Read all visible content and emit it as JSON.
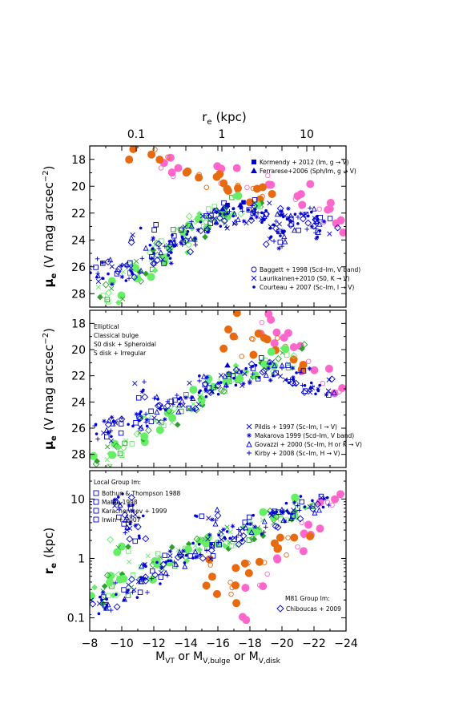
{
  "chart_data": [
    {
      "type": "scatter",
      "panel": "top",
      "ylabel_prefix": "μ",
      "ylabel_sub": "e",
      "ylabel_rest": "(V mag arcsec",
      "ylabel_sup": "−2",
      "ylabel_close": ")",
      "ylim": [
        29,
        17
      ],
      "xlim": [
        -8,
        -24
      ],
      "top_axis_label_prefix": "r",
      "top_axis_label_sub": "e",
      "top_axis_label_rest": "(kpc)",
      "top_ticks": [
        "0.1",
        "1",
        "10"
      ],
      "yticks": [
        "18",
        "20",
        "22",
        "24",
        "26",
        "28"
      ],
      "legend_top": [
        {
          "marker": "filled-square",
          "color": "#0000cc",
          "label": "Kormendy + 2012 (Im, g → V)"
        },
        {
          "marker": "filled-triangle",
          "color": "#0000cc",
          "label": "Ferrarese+2006 (Sph/Im, g → V)"
        }
      ],
      "legend_bottom": [
        {
          "marker": "open-circle",
          "color": "#0000cc",
          "label": "Baggett + 1998 (Scd–Im, V band)"
        },
        {
          "marker": "x",
          "color": "#0000cc",
          "label": "Laurikainen+2010 (S0, K → V)"
        },
        {
          "marker": "dot",
          "color": "#0000cc",
          "label": "Courteau + 2007 (Sc–Im, I → V)"
        }
      ],
      "series": [
        {
          "group": "Elliptical",
          "color": "#ff66cc",
          "points": [
            [
              -13.2,
              18.2
            ],
            [
              -13.8,
              18.6
            ],
            [
              -15.5,
              19.0
            ],
            [
              -17.0,
              19.4
            ],
            [
              -18.5,
              19.6
            ],
            [
              -19.5,
              19.9
            ],
            [
              -20.5,
              20.1
            ],
            [
              -21.2,
              20.6
            ],
            [
              -21.8,
              21.0
            ],
            [
              -22.3,
              21.5
            ],
            [
              -22.8,
              22.0
            ],
            [
              -23.2,
              22.6
            ],
            [
              -23.5,
              22.9
            ],
            [
              -12.8,
              18.5
            ]
          ]
        },
        {
          "group": "Classical bulge",
          "color": "#e86a10",
          "points": [
            [
              -10.3,
              17.9
            ],
            [
              -12.0,
              17.6
            ],
            [
              -12.8,
              18.5
            ],
            [
              -14.2,
              18.8
            ],
            [
              -14.8,
              19.3
            ],
            [
              -15.5,
              19.8
            ],
            [
              -16.3,
              19.9
            ],
            [
              -17.0,
              20.3
            ],
            [
              -17.8,
              20.5
            ],
            [
              -18.6,
              20.9
            ],
            [
              -19.3,
              21.1
            ],
            [
              -16.8,
              20.0
            ],
            [
              -18.0,
              20.2
            ]
          ]
        },
        {
          "group": "S0 disk + Spheroidal",
          "color": "#2ca02c",
          "points": [
            [
              -9.0,
              27.5
            ],
            [
              -9.8,
              28.0
            ],
            [
              -10.6,
              26.8
            ],
            [
              -11.2,
              26.2
            ],
            [
              -12.0,
              25.5
            ],
            [
              -12.6,
              24.8
            ],
            [
              -13.4,
              24.5
            ],
            [
              -14.0,
              23.8
            ],
            [
              -14.5,
              23.0
            ],
            [
              -15.0,
              22.6
            ],
            [
              -15.8,
              22.4
            ],
            [
              -16.4,
              21.8
            ],
            [
              -17.2,
              21.5
            ],
            [
              -18.0,
              21.5
            ]
          ]
        },
        {
          "group": "S disk + Irregular",
          "color": "#0000cc",
          "points": [
            [
              -8.5,
              26.0
            ],
            [
              -9.2,
              26.4
            ],
            [
              -10.0,
              26.6
            ],
            [
              -10.8,
              26.0
            ],
            [
              -11.4,
              23.6
            ],
            [
              -12.0,
              25.2
            ],
            [
              -12.6,
              25.0
            ],
            [
              -13.2,
              24.8
            ],
            [
              -13.8,
              24.2
            ],
            [
              -14.4,
              23.6
            ],
            [
              -15.0,
              22.8
            ],
            [
              -15.6,
              22.6
            ],
            [
              -16.2,
              22.4
            ],
            [
              -16.8,
              22.0
            ],
            [
              -17.4,
              22.2
            ],
            [
              -18.0,
              22.0
            ],
            [
              -18.6,
              21.8
            ],
            [
              -19.2,
              22.2
            ],
            [
              -19.8,
              22.4
            ],
            [
              -20.4,
              22.6
            ],
            [
              -21.0,
              22.8
            ],
            [
              -21.6,
              22.4
            ],
            [
              -22.2,
              22.8
            ],
            [
              -22.8,
              23.2
            ],
            [
              -20.0,
              23.6
            ],
            [
              -19.5,
              24.0
            ]
          ]
        },
        {
          "group": "Ferrarese+2006",
          "color": "#0000cc",
          "points": [
            [
              -16.3,
              21.7
            ],
            [
              -17.4,
              21.4
            ]
          ]
        },
        {
          "group": "Kormendy+2012",
          "color": "#0000cc",
          "points": [
            [
              -16.6,
              21.4
            ],
            [
              -17.6,
              21.2
            ]
          ]
        }
      ]
    },
    {
      "type": "scatter",
      "panel": "middle",
      "ylabel_prefix": "μ",
      "ylabel_sub": "e",
      "ylabel_rest": "(V mag arcsec",
      "ylabel_sup": "−2",
      "ylabel_close": ")",
      "ylim": [
        29,
        17
      ],
      "xlim": [
        -8,
        -24
      ],
      "yticks": [
        "18",
        "20",
        "22",
        "24",
        "26",
        "28"
      ],
      "group_legend": [
        {
          "label": "Elliptical",
          "color": "#ff66cc"
        },
        {
          "label": "Classical bulge",
          "color": "#e86a10"
        },
        {
          "label": "S0 disk + Spheroidal",
          "color": "#2ca02c"
        },
        {
          "label": "S disk + Irregular",
          "color": "#0000cc"
        }
      ],
      "legend_bottom": [
        {
          "marker": "x",
          "color": "#0000cc",
          "label": "Pildis + 1997 (Sc–Im, I → V)"
        },
        {
          "marker": "asterisk",
          "color": "#0000cc",
          "label": "Makarova 1999 (Scd–Im, V band)"
        },
        {
          "marker": "open-triangle",
          "color": "#0000cc",
          "label": "Govazzi + 2000 (Sc–Im, H or K → V)"
        },
        {
          "marker": "plus",
          "color": "#0000cc",
          "label": "Kirby + 2008 (Sc–Im, H → V)"
        }
      ],
      "series": [
        {
          "group": "Elliptical",
          "color": "#ff66cc",
          "points": [
            [
              -18.6,
              18.0
            ],
            [
              -19.4,
              18.4
            ],
            [
              -20.0,
              18.9
            ],
            [
              -20.6,
              19.4
            ],
            [
              -21.2,
              20.2
            ],
            [
              -21.8,
              21.0
            ],
            [
              -22.4,
              21.8
            ],
            [
              -23.0,
              22.4
            ],
            [
              -23.6,
              22.8
            ],
            [
              -19.0,
              19.2
            ]
          ]
        },
        {
          "group": "Classical bulge",
          "color": "#e86a10",
          "points": [
            [
              -17.0,
              17.8
            ],
            [
              -17.6,
              19.0
            ],
            [
              -18.2,
              18.9
            ],
            [
              -18.8,
              19.6
            ],
            [
              -19.4,
              19.9
            ],
            [
              -20.0,
              20.3
            ],
            [
              -20.8,
              20.8
            ],
            [
              -18.0,
              20.4
            ],
            [
              -16.8,
              19.3
            ]
          ]
        },
        {
          "group": "S0 disk + Spheroidal",
          "color": "#2ca02c",
          "points": [
            [
              -8.6,
              28.2
            ],
            [
              -9.4,
              27.6
            ],
            [
              -10.2,
              27.4
            ],
            [
              -11.0,
              26.4
            ],
            [
              -12.0,
              25.6
            ],
            [
              -12.8,
              25.0
            ],
            [
              -13.6,
              24.6
            ],
            [
              -14.4,
              24.0
            ],
            [
              -15.2,
              23.4
            ],
            [
              -16.0,
              23.0
            ],
            [
              -16.8,
              22.4
            ],
            [
              -17.6,
              21.8
            ],
            [
              -18.4,
              21.4
            ],
            [
              -19.2,
              21.2
            ],
            [
              -20.0,
              20.6
            ],
            [
              -20.8,
              20.4
            ]
          ]
        },
        {
          "group": "S disk + Irregular",
          "color": "#0000cc",
          "points": [
            [
              -8.4,
              26.4
            ],
            [
              -9.2,
              26.2
            ],
            [
              -10.0,
              25.8
            ],
            [
              -10.8,
              25.4
            ],
            [
              -11.6,
              25.2
            ],
            [
              -12.4,
              24.6
            ],
            [
              -13.2,
              24.2
            ],
            [
              -14.0,
              23.8
            ],
            [
              -14.8,
              23.2
            ],
            [
              -15.6,
              22.8
            ],
            [
              -16.4,
              22.4
            ],
            [
              -17.2,
              22.0
            ],
            [
              -18.0,
              21.8
            ],
            [
              -18.8,
              21.4
            ],
            [
              -19.6,
              21.6
            ],
            [
              -20.4,
              22.0
            ],
            [
              -21.2,
              22.2
            ],
            [
              -22.0,
              22.6
            ],
            [
              -22.6,
              23.0
            ],
            [
              -11.6,
              23.2
            ]
          ]
        },
        {
          "group": "Ferrarese+2006",
          "color": "#0000cc",
          "points": [
            [
              -16.6,
              21.2
            ]
          ]
        }
      ]
    },
    {
      "type": "scatter",
      "panel": "bottom",
      "ylabel_prefix": "r",
      "ylabel_sub": "e",
      "ylabel_rest": "(kpc)",
      "ylim": [
        0.06,
        30
      ],
      "y_scale": "log",
      "xlim": [
        -8,
        -24
      ],
      "yticks": [
        "0.1",
        "1",
        "10"
      ],
      "xlabel_main": "M",
      "xlabel_parts": [
        {
          "text": "M",
          "sub": "VT"
        },
        {
          "text": " or M",
          "sub": "V,bulge"
        },
        {
          "text": " or M",
          "sub": "V,disk"
        }
      ],
      "xticks": [
        "−8",
        "−10",
        "−12",
        "−14",
        "−16",
        "−18",
        "−20",
        "−22",
        "−24"
      ],
      "legend_top_title": "Local Group Im:",
      "legend_top": [
        {
          "marker": "open-square",
          "color": "#0000cc",
          "label": "Bothun & Thompson 1988"
        },
        {
          "marker": "open-square",
          "color": "#0000cc",
          "label": "Mateo 1998"
        },
        {
          "marker": "open-square",
          "color": "#0000cc",
          "label": "Karachentsev + 1999"
        },
        {
          "marker": "open-square",
          "color": "#0000cc",
          "label": "Irwin + 2007"
        }
      ],
      "legend_bottom_title": "M81 Group Im:",
      "legend_bottom": [
        {
          "marker": "open-diamond",
          "color": "#0000cc",
          "label": "Chiboucas + 2009"
        }
      ],
      "series": [
        {
          "group": "Elliptical",
          "color": "#ff66cc",
          "points": [
            [
              -17.0,
              0.12
            ],
            [
              -18.2,
              0.25
            ],
            [
              -19.0,
              0.4
            ],
            [
              -19.8,
              0.8
            ],
            [
              -20.6,
              1.4
            ],
            [
              -21.2,
              2.2
            ],
            [
              -21.8,
              3.5
            ],
            [
              -22.4,
              6.0
            ],
            [
              -23.0,
              10.0
            ],
            [
              -23.6,
              18.0
            ],
            [
              -22.0,
              5.0
            ]
          ]
        },
        {
          "group": "Classical bulge",
          "color": "#e86a10",
          "points": [
            [
              -15.6,
              0.3
            ],
            [
              -16.2,
              0.45
            ],
            [
              -16.8,
              0.35
            ],
            [
              -17.4,
              0.6
            ],
            [
              -18.0,
              0.8
            ],
            [
              -18.6,
              0.9
            ],
            [
              -19.2,
              1.0
            ],
            [
              -19.8,
              1.3
            ],
            [
              -20.4,
              1.6
            ],
            [
              -21.0,
              2.0
            ],
            [
              -15.8,
              0.7
            ],
            [
              -17.0,
              0.25
            ]
          ]
        },
        {
          "group": "S0 disk + Spheroidal",
          "color": "#2ca02c",
          "points": [
            [
              -8.4,
              0.2
            ],
            [
              -9.0,
              0.3
            ],
            [
              -9.6,
              0.35
            ],
            [
              -10.4,
              0.45
            ],
            [
              -11.2,
              0.6
            ],
            [
              -12.0,
              0.75
            ],
            [
              -12.8,
              0.9
            ],
            [
              -13.6,
              1.2
            ],
            [
              -14.4,
              1.5
            ],
            [
              -15.2,
              1.6
            ],
            [
              -16.0,
              2.0
            ],
            [
              -16.8,
              2.4
            ],
            [
              -17.6,
              2.8
            ],
            [
              -18.4,
              3.5
            ],
            [
              -19.2,
              4.5
            ],
            [
              -20.0,
              5.5
            ],
            [
              -20.8,
              6.5
            ],
            [
              -21.6,
              8.0
            ],
            [
              -10.0,
              1.5
            ]
          ]
        },
        {
          "group": "S disk + Irregular",
          "color": "#0000cc",
          "points": [
            [
              -8.6,
              0.15
            ],
            [
              -9.4,
              0.2
            ],
            [
              -10.2,
              0.3
            ],
            [
              -11.0,
              0.4
            ],
            [
              -11.8,
              0.55
            ],
            [
              -12.6,
              0.7
            ],
            [
              -13.4,
              0.9
            ],
            [
              -14.2,
              1.1
            ],
            [
              -15.0,
              1.4
            ],
            [
              -15.8,
              1.8
            ],
            [
              -16.6,
              2.2
            ],
            [
              -17.4,
              2.8
            ],
            [
              -18.2,
              3.5
            ],
            [
              -19.0,
              4.5
            ],
            [
              -19.8,
              5.5
            ],
            [
              -20.6,
              6.5
            ],
            [
              -21.4,
              8.0
            ],
            [
              -22.2,
              9.0
            ],
            [
              -10.0,
              10.0
            ],
            [
              -10.4,
              6.5
            ],
            [
              -10.6,
              4.5
            ],
            [
              -11.0,
              2.8
            ],
            [
              -15.2,
              5.0
            ]
          ]
        }
      ]
    }
  ]
}
